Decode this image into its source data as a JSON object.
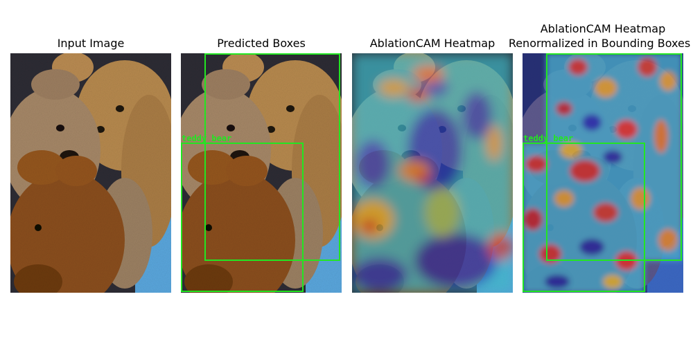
{
  "figure": {
    "panels": [
      {
        "title": "Input Image"
      },
      {
        "title": "Predicted Boxes"
      },
      {
        "title": "AblationCAM Heatmap"
      },
      {
        "title_line1": "AblationCAM Heatmap",
        "title_line2": "Renormalized in Bounding Boxes"
      }
    ],
    "detection_label": "teddy_bear",
    "box_color": "#22e622"
  }
}
